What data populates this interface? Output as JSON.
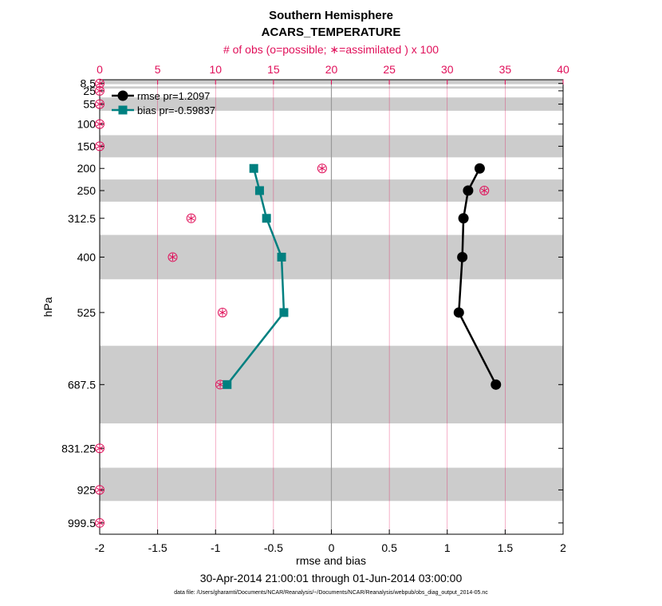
{
  "chart_data": {
    "type": "line",
    "title": "Southern Hemisphere",
    "subtitle": "ACARS_TEMPERATURE",
    "top_axis_label": "# of obs (o=possible; ∗=assimilated ) x 100",
    "xlabel": "rmse and bias",
    "ylabel": "hPa",
    "date_range": "30-Apr-2014 21:00:01 through 01-Jun-2014 03:00:00",
    "footnote": "data file: /Users/gharamti/Documents/NCAR/Reanalysis/~/Documents/NCAR/Reanalysis/webpub/obs_diag_output_2014-05.nc",
    "xlim": [
      -2,
      2
    ],
    "x_ticks": [
      -2,
      -1.5,
      -1,
      -0.5,
      0,
      0.5,
      1,
      1.5,
      2
    ],
    "x_tick_labels": [
      "-2",
      "-1.5",
      "-1",
      "-0.5",
      "0",
      "0.5",
      "1",
      "1.5",
      "2"
    ],
    "top_xlim": [
      0,
      40
    ],
    "top_ticks": [
      0,
      5,
      10,
      15,
      20,
      25,
      30,
      35,
      40
    ],
    "top_tick_labels": [
      "0",
      "5",
      "10",
      "15",
      "20",
      "25",
      "30",
      "35",
      "40"
    ],
    "levels": [
      8.5,
      25,
      55,
      100,
      150,
      200,
      250,
      312.5,
      400,
      525,
      687.5,
      831.25,
      925,
      999.5
    ],
    "level_labels": [
      "8.5",
      "25",
      "55",
      "100",
      "150",
      "200",
      "250",
      "312.5",
      "400",
      "525",
      "687.5",
      "831.25",
      "925",
      "999.5"
    ],
    "ylim": [
      0,
      1025
    ],
    "shaded_bands": [
      [
        0,
        10
      ],
      [
        15,
        20
      ],
      [
        40,
        70
      ],
      [
        125,
        175
      ],
      [
        225,
        275
      ],
      [
        350,
        450
      ],
      [
        600,
        775
      ],
      [
        875,
        950
      ]
    ],
    "series": [
      {
        "name": "rmse",
        "legend": "rmse pr=1.2097",
        "color": "#000000",
        "marker": "circle",
        "points": [
          [
            1.28,
            200
          ],
          [
            1.18,
            250
          ],
          [
            1.14,
            312.5
          ],
          [
            1.13,
            400
          ],
          [
            1.1,
            525
          ],
          [
            1.42,
            687.5
          ]
        ]
      },
      {
        "name": "bias",
        "legend": "bias pr=-0.59837",
        "color": "#008080",
        "marker": "square",
        "points": [
          [
            -0.67,
            200
          ],
          [
            -0.62,
            250
          ],
          [
            -0.56,
            312.5
          ],
          [
            -0.43,
            400
          ],
          [
            -0.41,
            525
          ],
          [
            -0.9,
            687.5
          ]
        ]
      }
    ],
    "obs_possible": [
      [
        0,
        8.5
      ],
      [
        0,
        25
      ],
      [
        0,
        55
      ],
      [
        0,
        100
      ],
      [
        0,
        150
      ],
      [
        19.2,
        200
      ],
      [
        33.2,
        250
      ],
      [
        7.9,
        312.5
      ],
      [
        6.3,
        400
      ],
      [
        10.6,
        525
      ],
      [
        10.4,
        687.5
      ],
      [
        0,
        831.25
      ],
      [
        0,
        925
      ],
      [
        0,
        999.5
      ]
    ],
    "obs_assimilated": [
      [
        0,
        8.5
      ],
      [
        0,
        25
      ],
      [
        0,
        55
      ],
      [
        0,
        100
      ],
      [
        0,
        150
      ],
      [
        19.2,
        200
      ],
      [
        33.2,
        250
      ],
      [
        7.9,
        312.5
      ],
      [
        6.3,
        400
      ],
      [
        10.6,
        525
      ],
      [
        10.4,
        687.5
      ],
      [
        0,
        831.25
      ],
      [
        0,
        925
      ],
      [
        0,
        999.5
      ]
    ]
  },
  "colors": {
    "obs": "#e0105a",
    "band": "#cccccc",
    "grid_top": "#e0105a"
  }
}
